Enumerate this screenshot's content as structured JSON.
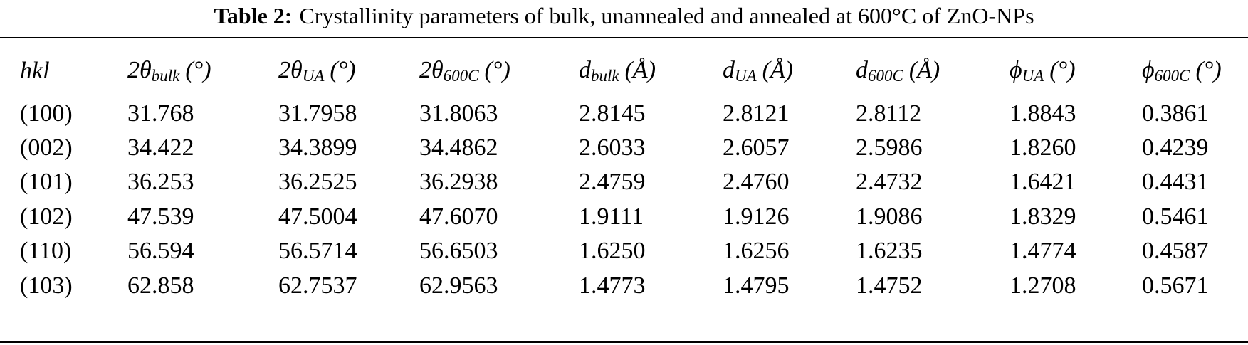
{
  "title": {
    "label": "Table 2:",
    "text": "Crystallinity parameters of bulk, unannealed and annealed at 600°C of ZnO-NPs"
  },
  "table": {
    "columns": [
      {
        "main": "hkl"
      },
      {
        "main": "2θ",
        "sub": "bulk",
        "unit": "(°)"
      },
      {
        "main": "2θ",
        "sub": "UA",
        "unit": "(°)"
      },
      {
        "main": "2θ",
        "sub": "600C",
        "unit": "(°)"
      },
      {
        "main": "d",
        "sub": "bulk",
        "unit": "(Å)"
      },
      {
        "main": "d",
        "sub": "UA",
        "unit": "(Å)"
      },
      {
        "main": "d",
        "sub": "600C",
        "unit": "(Å)"
      },
      {
        "main": "ϕ",
        "sub": "UA",
        "unit": "(°)"
      },
      {
        "main": "ϕ",
        "sub": "600C",
        "unit": "(°)"
      }
    ],
    "rows": [
      [
        "(100)",
        "31.768",
        "31.7958",
        "31.8063",
        "2.8145",
        "2.8121",
        "2.8112",
        "1.8843",
        "0.3861"
      ],
      [
        "(002)",
        "34.422",
        "34.3899",
        "34.4862",
        "2.6033",
        "2.6057",
        "2.5986",
        "1.8260",
        "0.4239"
      ],
      [
        "(101)",
        "36.253",
        "36.2525",
        "36.2938",
        "2.4759",
        "2.4760",
        "2.4732",
        "1.6421",
        "0.4431"
      ],
      [
        "(102)",
        "47.539",
        "47.5004",
        "47.6070",
        "1.9111",
        "1.9126",
        "1.9086",
        "1.8329",
        "0.5461"
      ],
      [
        "(110)",
        "56.594",
        "56.5714",
        "56.6503",
        "1.6250",
        "1.6256",
        "1.6235",
        "1.4774",
        "0.4587"
      ],
      [
        "(103)",
        "62.858",
        "62.7537",
        "62.9563",
        "1.4773",
        "1.4795",
        "1.4752",
        "1.2708",
        "0.5671"
      ]
    ]
  }
}
